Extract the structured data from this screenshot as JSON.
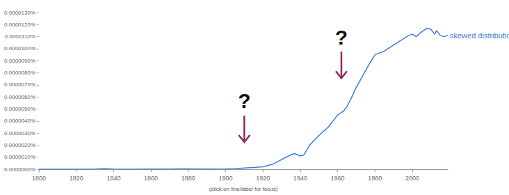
{
  "chart_data": {
    "type": "line",
    "xlabel": "(click on line/label for focus)",
    "series": [
      {
        "name": "skewed distribution",
        "color": "#3b7dd8",
        "x": [
          1800,
          1810,
          1820,
          1830,
          1835,
          1840,
          1850,
          1860,
          1870,
          1880,
          1890,
          1900,
          1905,
          1910,
          1915,
          1920,
          1925,
          1930,
          1935,
          1937,
          1940,
          1942,
          1945,
          1950,
          1955,
          1960,
          1963,
          1965,
          1967,
          1970,
          1975,
          1978,
          1980,
          1985,
          1990,
          1995,
          1998,
          2000,
          2002,
          2005,
          2008,
          2010,
          2012,
          2013,
          2015,
          2017,
          2019
        ],
        "values": [
          0,
          0,
          0,
          2e-08,
          5e-08,
          2e-08,
          0,
          1e-08,
          2e-08,
          3e-08,
          2e-08,
          3e-08,
          5e-08,
          1e-07,
          1.4e-07,
          2e-07,
          4e-07,
          8e-07,
          1.2e-06,
          1.3e-06,
          1.1e-06,
          1.2e-06,
          2e-06,
          2.8e-06,
          3.5e-06,
          4.5e-06,
          4.8e-06,
          5.2e-06,
          5.8e-06,
          6.8e-06,
          8.2e-06,
          9e-06,
          9.5e-06,
          9.8e-06,
          1.03e-05,
          1.08e-05,
          1.11e-05,
          1.12e-05,
          1.1e-05,
          1.14e-05,
          1.17e-05,
          1.16e-05,
          1.12e-05,
          1.15e-05,
          1.11e-05,
          1.1e-05,
          1.11e-05
        ]
      }
    ],
    "xlim": [
      1800,
      2019
    ],
    "xticks": [
      1800,
      1820,
      1840,
      1860,
      1880,
      1900,
      1920,
      1940,
      1960,
      1980,
      2000
    ],
    "ylim": [
      0,
      1.3e-05
    ],
    "yticks": [
      {
        "value": 0,
        "label": "0.0000000%"
      },
      {
        "value": 1e-06,
        "label": "0.0000010%"
      },
      {
        "value": 2e-06,
        "label": "0.0000020%"
      },
      {
        "value": 3e-06,
        "label": "0.0000030%"
      },
      {
        "value": 4e-06,
        "label": "0.0000040%"
      },
      {
        "value": 5e-06,
        "label": "0.0000050%"
      },
      {
        "value": 6e-06,
        "label": "0.0000060%"
      },
      {
        "value": 7e-06,
        "label": "0.0000070%"
      },
      {
        "value": 8e-06,
        "label": "0.0000080%"
      },
      {
        "value": 9e-06,
        "label": "0.0000090%"
      },
      {
        "value": 1e-05,
        "label": "0.0000100%"
      },
      {
        "value": 1.1e-05,
        "label": "0.0000110%"
      },
      {
        "value": 1.2e-05,
        "label": "0.0000120%"
      },
      {
        "value": 1.3e-05,
        "label": "0.0000130%"
      }
    ],
    "grid": false,
    "annotations": [
      {
        "text": "?",
        "x": 1910,
        "y": 4.8e-06
      },
      {
        "text": "?",
        "x": 1962,
        "y": 1.01e-05
      }
    ]
  }
}
